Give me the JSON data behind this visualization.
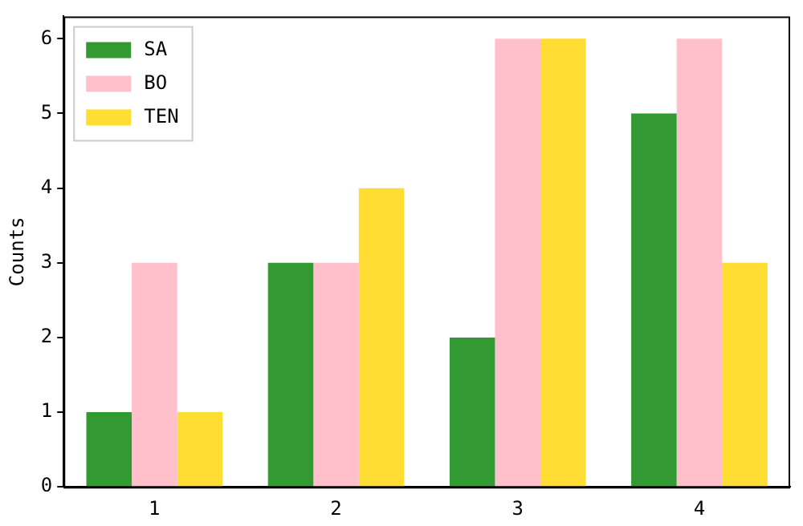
{
  "chart_data": {
    "type": "bar",
    "ylabel": "Counts",
    "categories": [
      "1",
      "2",
      "3",
      "4"
    ],
    "series": [
      {
        "name": "SA",
        "color": "#339933",
        "values": [
          1,
          3,
          2,
          5
        ]
      },
      {
        "name": "BO",
        "color": "#ffc0cb",
        "values": [
          3,
          3,
          6,
          6
        ]
      },
      {
        "name": "TEN",
        "color": "#ffdd33",
        "values": [
          1,
          4,
          6,
          3
        ]
      }
    ],
    "ylim": [
      0,
      6.3
    ],
    "yticks": [
      0,
      1,
      2,
      3,
      4,
      5,
      6
    ],
    "legend": "top left",
    "grid": false
  }
}
